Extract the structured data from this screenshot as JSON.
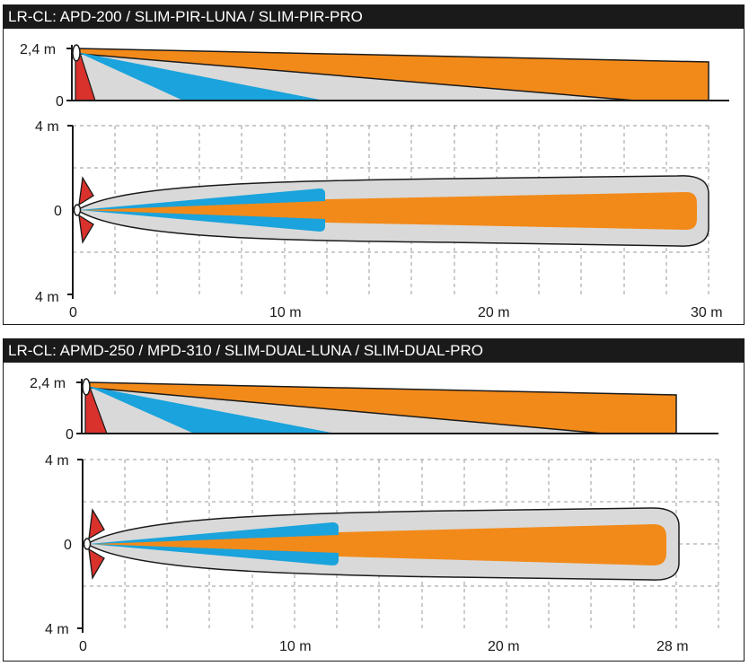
{
  "colors": {
    "orange": "#f28a1a",
    "blue": "#1aa3dc",
    "grey": "#d9d9d9",
    "red": "#d9312b",
    "black": "#1a1a1a"
  },
  "panels": [
    {
      "title": "LR-CL: APD-200 / SLIM-PIR-LUNA / SLIM-PIR-PRO",
      "side_view": {
        "y_top_label": "2,4 m",
        "y_bottom_label": "0"
      },
      "top_view": {
        "y_labels": [
          "4 m",
          "0",
          "4 m"
        ],
        "x_labels": [
          "0",
          "10 m",
          "20 m",
          "30 m"
        ]
      }
    },
    {
      "title": "LR-CL: APMD-250 / MPD-310 / SLIM-DUAL-LUNA / SLIM-DUAL-PRO",
      "side_view": {
        "y_top_label": "2,4 m",
        "y_bottom_label": "0"
      },
      "top_view": {
        "y_labels": [
          "4 m",
          "0",
          "4 m"
        ],
        "x_labels": [
          "0",
          "10 m",
          "20 m",
          "28 m"
        ]
      }
    }
  ]
}
